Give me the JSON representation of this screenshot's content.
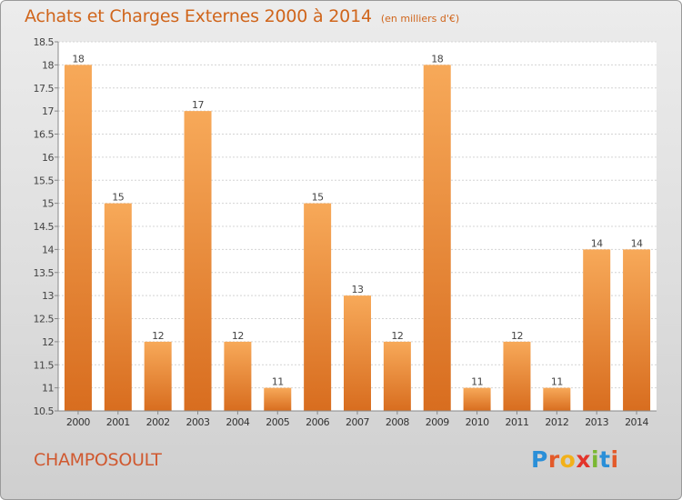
{
  "title": "Achats et Charges Externes 2000 à 2014",
  "title_unit": "(en milliers d'€)",
  "commune": "CHAMPOSOULT",
  "logo": {
    "letters": [
      "P",
      "r",
      "o",
      "x",
      "i",
      "t",
      "i"
    ],
    "colors": [
      "#2a8fd8",
      "#e35a2a",
      "#f2b11a",
      "#e3342b",
      "#7ab833",
      "#2a8fd8",
      "#e35a2a"
    ]
  },
  "colors": {
    "bar_light": "#f7a959",
    "bar_dark": "#d86d1f",
    "title": "#d0651b",
    "commune": "#d0582f"
  },
  "chart_data": {
    "type": "bar",
    "categories": [
      "2000",
      "2001",
      "2002",
      "2003",
      "2004",
      "2005",
      "2006",
      "2007",
      "2008",
      "2009",
      "2010",
      "2011",
      "2012",
      "2013",
      "2014"
    ],
    "values": [
      18,
      15,
      12,
      17,
      12,
      11,
      15,
      13,
      12,
      18,
      11,
      12,
      11,
      14,
      14
    ],
    "data_labels": [
      "18",
      "15",
      "12",
      "17",
      "12",
      "11",
      "15",
      "13",
      "12",
      "18",
      "11",
      "12",
      "11",
      "14",
      "14"
    ],
    "ylim": [
      10.5,
      18.5
    ],
    "yticks": [
      "10.5",
      "11",
      "11.5",
      "12",
      "12.5",
      "13",
      "13.5",
      "14",
      "14.5",
      "15",
      "15.5",
      "16",
      "16.5",
      "17",
      "17.5",
      "18",
      "18.5"
    ],
    "grid": true,
    "xlabel": "",
    "ylabel": ""
  }
}
